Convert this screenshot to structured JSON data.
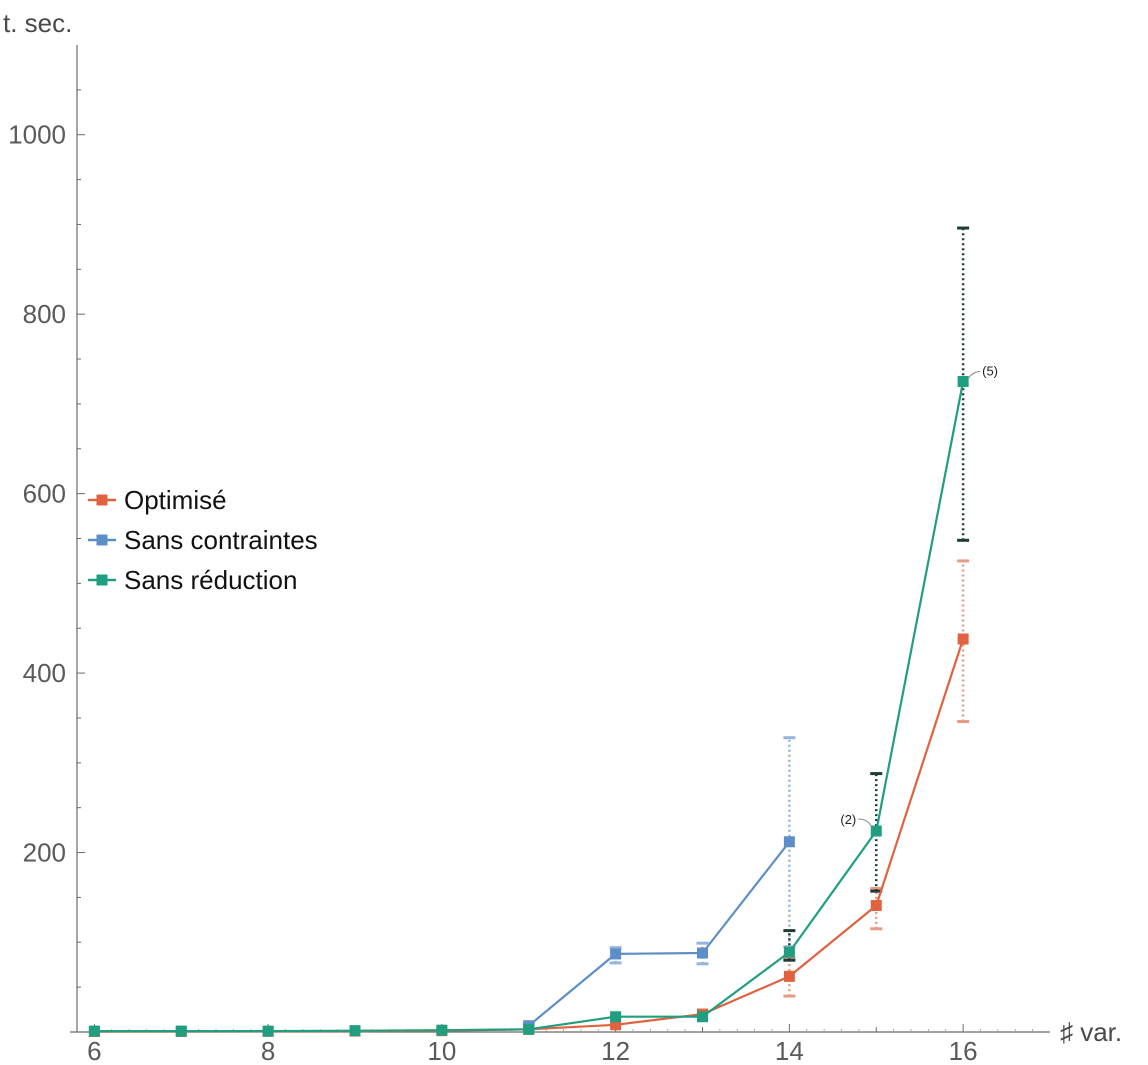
{
  "chart_data": {
    "type": "line",
    "xlabel": "♯ var.",
    "ylabel": "t. sec.",
    "xlim": [
      5.8,
      17.0
    ],
    "ylim": [
      0,
      1100
    ],
    "x_ticks": [
      6,
      8,
      10,
      12,
      14,
      16
    ],
    "y_ticks": [
      200,
      400,
      600,
      800,
      1000
    ],
    "grid": false,
    "legend_position": "left-middle",
    "series": [
      {
        "name": "Optimisé",
        "color": "#e0623f",
        "error_color": "#e89a86",
        "points": [
          {
            "x": 6,
            "y": 0.5
          },
          {
            "x": 7,
            "y": 0.6
          },
          {
            "x": 8,
            "y": 0.7
          },
          {
            "x": 9,
            "y": 1
          },
          {
            "x": 10,
            "y": 1.5
          },
          {
            "x": 11,
            "y": 3
          },
          {
            "x": 12,
            "y": 8
          },
          {
            "x": 13,
            "y": 20
          },
          {
            "x": 14,
            "y": 62,
            "err": [
              40,
              82
            ]
          },
          {
            "x": 15,
            "y": 141,
            "err": [
              115,
              160
            ]
          },
          {
            "x": 16,
            "y": 438,
            "err": [
              346,
              525
            ]
          }
        ]
      },
      {
        "name": "Sans contraintes",
        "color": "#5e8ec7",
        "error_color": "#94b6dc",
        "points": [
          {
            "x": 11,
            "y": 7,
            "err": [
              3,
              10
            ]
          },
          {
            "x": 12,
            "y": 87,
            "err": [
              77,
              94
            ]
          },
          {
            "x": 13,
            "y": 88,
            "err": [
              76,
              99
            ]
          },
          {
            "x": 14,
            "y": 212,
            "err": [
              95,
              328
            ]
          }
        ]
      },
      {
        "name": "Sans réduction",
        "color": "#1f9e80",
        "error_color": "#1e3b36",
        "points": [
          {
            "x": 6,
            "y": 1
          },
          {
            "x": 7,
            "y": 1
          },
          {
            "x": 8,
            "y": 1
          },
          {
            "x": 9,
            "y": 1.5
          },
          {
            "x": 10,
            "y": 2
          },
          {
            "x": 11,
            "y": 3
          },
          {
            "x": 12,
            "y": 17
          },
          {
            "x": 13,
            "y": 17
          },
          {
            "x": 14,
            "y": 89,
            "err": [
              80,
              113
            ]
          },
          {
            "x": 15,
            "y": 224,
            "err": [
              157,
              288
            ]
          },
          {
            "x": 16,
            "y": 725,
            "err": [
              548,
              896
            ]
          }
        ]
      }
    ],
    "annotations": [
      {
        "text": "(2)",
        "x": 15,
        "y": 224,
        "side": "left"
      },
      {
        "text": "(5)",
        "x": 16,
        "y": 725,
        "side": "right"
      }
    ]
  }
}
